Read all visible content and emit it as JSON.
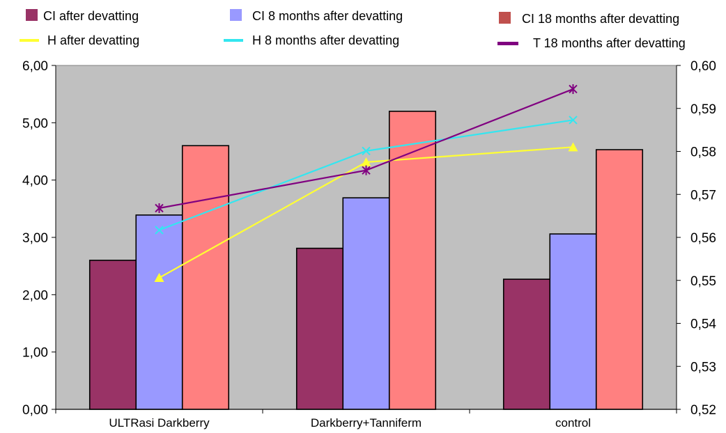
{
  "chart_data": {
    "type": "bar",
    "title": "",
    "xlabel": "",
    "ylabel": "",
    "categories": [
      "ULTRasi Darkberry",
      "Darkberry+Tanniferm",
      "control"
    ],
    "ylim": [
      0,
      6
    ],
    "y_ticks": [
      "0,00",
      "1,00",
      "2,00",
      "3,00",
      "4,00",
      "5,00",
      "6,00"
    ],
    "y2lim": [
      0.52,
      0.6
    ],
    "y2_ticks": [
      "0,52",
      "0,53",
      "0,54",
      "0,55",
      "0,56",
      "0,57",
      "0,58",
      "0,59",
      "0,60"
    ],
    "grid": false,
    "legend_position": "top",
    "background": "#c0c0c0",
    "series": [
      {
        "name": "CI after devatting",
        "type": "bar",
        "axis": "left",
        "color": "#993366",
        "values": [
          2.6,
          2.81,
          2.27
        ]
      },
      {
        "name": "CI 8 months after devatting",
        "type": "bar",
        "axis": "left",
        "color": "#9999ff",
        "values": [
          3.39,
          3.69,
          3.06
        ]
      },
      {
        "name": "CI 18 months after devatting",
        "type": "bar",
        "axis": "left",
        "color": "#ff8080",
        "legend_color": "#c0504d",
        "values": [
          4.6,
          5.2,
          4.53
        ]
      },
      {
        "name": "H after devatting",
        "type": "line",
        "axis": "right",
        "color": "#ffff33",
        "marker": "triangle",
        "values": [
          0.5506,
          0.5775,
          0.581
        ]
      },
      {
        "name": "H 8 months after devatting",
        "type": "line",
        "axis": "right",
        "color": "#33e6f0",
        "marker": "x",
        "values": [
          0.5617,
          0.5801,
          0.5873
        ]
      },
      {
        "name": "T 18 months after devatting",
        "type": "line",
        "axis": "right",
        "color": "#800080",
        "marker": "asterisk",
        "values": [
          0.5668,
          0.5756,
          0.5945
        ]
      }
    ]
  }
}
